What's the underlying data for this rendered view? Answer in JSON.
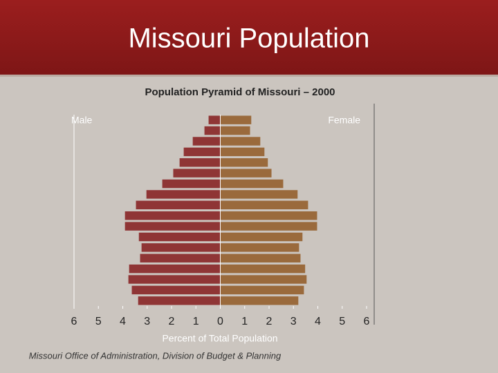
{
  "page_title": "Missouri Population",
  "chart_data": {
    "type": "pyramid",
    "title": "Population Pyramid of Missouri – 2000",
    "x_label": "Percent of Total Population",
    "source": "Missouri Office of Administration, Division of Budget & Planning",
    "categories": [
      null,
      null,
      null,
      null,
      null,
      null,
      null,
      null,
      null,
      null,
      null,
      null,
      null,
      null,
      null,
      null,
      null,
      null
    ],
    "series": [
      {
        "name": "Male",
        "color": "#8f3535",
        "values": [
          -0.48,
          -0.65,
          -1.13,
          -1.5,
          -1.67,
          -1.93,
          -2.38,
          -3.03,
          -3.46,
          -3.91,
          -3.91,
          -3.34,
          -3.23,
          -3.29,
          -3.74,
          -3.77,
          -3.63,
          -3.37
        ]
      },
      {
        "name": "Female",
        "color": "#9a6a3c",
        "values": [
          1.27,
          1.22,
          1.64,
          1.81,
          1.95,
          2.1,
          2.58,
          3.17,
          3.6,
          3.97,
          3.97,
          3.37,
          3.23,
          3.29,
          3.48,
          3.54,
          3.43,
          3.2
        ]
      }
    ],
    "xlim": [
      -6,
      6
    ],
    "xticks": [
      {
        "value": -6,
        "label": "6"
      },
      {
        "value": -5,
        "label": "5"
      },
      {
        "value": -4,
        "label": "4"
      },
      {
        "value": -3,
        "label": "3"
      },
      {
        "value": -2,
        "label": "2"
      },
      {
        "value": -1,
        "label": "1"
      },
      0,
      1,
      2,
      3,
      4,
      5,
      6
    ]
  }
}
